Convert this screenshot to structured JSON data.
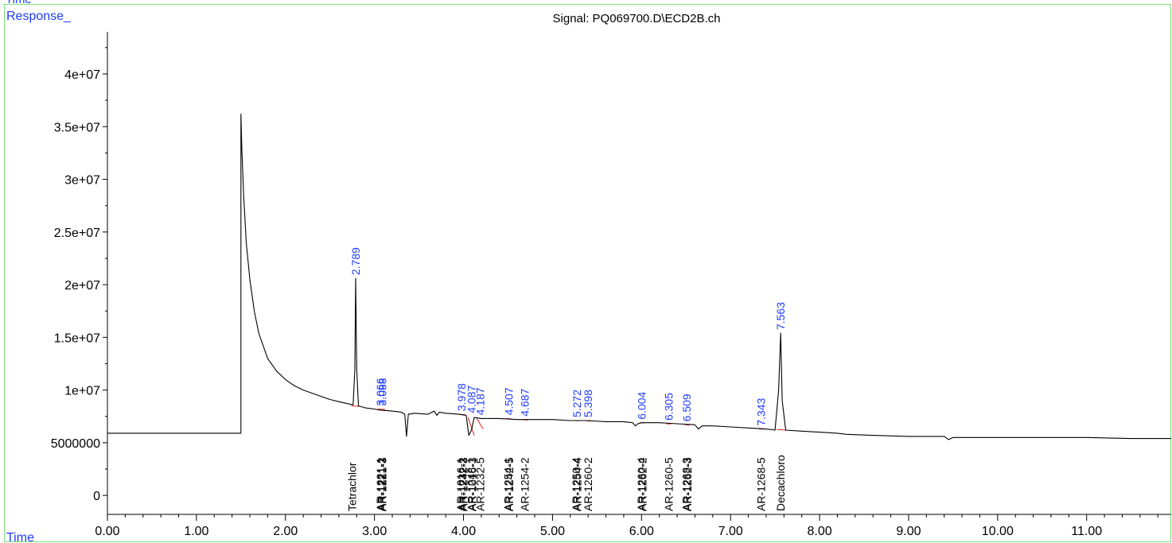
{
  "top_left_label": "Time",
  "chart_data": {
    "type": "line",
    "title": "Signal: PQ069700.D\\ECD2B.ch",
    "ylabel": "Response_",
    "xlabel": "Time",
    "xlim": [
      0,
      11.95
    ],
    "ylim": [
      -1800000,
      44000000
    ],
    "x_ticks": [
      0,
      1,
      2,
      3,
      4,
      5,
      6,
      7,
      8,
      9,
      10,
      11
    ],
    "x_tick_labels": [
      "0.00",
      "1.00",
      "2.00",
      "3.00",
      "4.00",
      "5.00",
      "6.00",
      "7.00",
      "8.00",
      "9.00",
      "10.00",
      "11.00"
    ],
    "y_ticks": [
      0,
      5000000,
      10000000,
      15000000,
      20000000,
      25000000,
      30000000,
      35000000,
      40000000
    ],
    "y_tick_labels": [
      "0",
      "5000000",
      "1e+07",
      "1.5e+07",
      "2e+07",
      "2.5e+07",
      "3e+07",
      "3.5e+07",
      "4e+07"
    ],
    "colors": {
      "trace": "#000000",
      "baseline": "#e0201c",
      "rt_label": "#1f3cff",
      "axis": "#000000",
      "frame": "#7be07b"
    },
    "series": [
      {
        "x": [
          0,
          1.5,
          1.5,
          1.51,
          1.53,
          1.56,
          1.6,
          1.65,
          1.7,
          1.8,
          1.9,
          2.0,
          2.1,
          2.2,
          2.3,
          2.4,
          2.5,
          2.6,
          2.7,
          2.76,
          2.78,
          2.789,
          2.8,
          2.82,
          2.9,
          3.0,
          3.06,
          3.2,
          3.3,
          3.34,
          3.36,
          3.38,
          3.45,
          3.6,
          3.67,
          3.7,
          3.73,
          3.8,
          3.95,
          4.03,
          4.06,
          4.09,
          4.12,
          4.2,
          4.4,
          4.6,
          4.8,
          5.0,
          5.2,
          5.4,
          5.6,
          5.8,
          5.9,
          5.93,
          5.96,
          6.0,
          6.2,
          6.4,
          6.6,
          6.64,
          6.68,
          6.8,
          7.0,
          7.2,
          7.4,
          7.5,
          7.54,
          7.563,
          7.58,
          7.62,
          7.8,
          8.0,
          8.2,
          8.3,
          8.6,
          9.0,
          9.4,
          9.45,
          9.5,
          10.0,
          10.5,
          11.0,
          11.5,
          11.95
        ],
        "y": [
          5900000,
          5900000,
          36200000,
          33000000,
          28500000,
          24000000,
          20500000,
          17500000,
          15400000,
          13000000,
          11800000,
          11000000,
          10400000,
          10000000,
          9700000,
          9400000,
          9100000,
          8900000,
          8700000,
          8600000,
          12000000,
          20600000,
          12000000,
          8500000,
          8300000,
          8200000,
          8100000,
          8000000,
          7900000,
          7700000,
          5600000,
          7700000,
          7800000,
          7700000,
          8000000,
          7600000,
          7900000,
          7800000,
          7700000,
          7600000,
          5700000,
          6200000,
          7400000,
          7300000,
          7300000,
          7200000,
          7200000,
          7200000,
          7100000,
          7100000,
          7000000,
          7000000,
          6900000,
          6600000,
          6800000,
          6900000,
          6900000,
          6800000,
          6700000,
          6300000,
          6600000,
          6600000,
          6500000,
          6400000,
          6300000,
          6200000,
          10000000,
          15400000,
          9000000,
          6200000,
          6100000,
          6000000,
          5900000,
          5800000,
          5700000,
          5600000,
          5600000,
          5300000,
          5500000,
          5500000,
          5500000,
          5500000,
          5400000,
          5400000
        ]
      }
    ],
    "peak_labels": [
      {
        "rt": "2.789",
        "x": 2.789,
        "y": 20600000
      },
      {
        "rt": "3.066",
        "x": 3.066,
        "y": 8200000
      },
      {
        "rt": "3.088",
        "x": 3.088,
        "y": 8200000
      },
      {
        "rt": "3.978",
        "x": 3.978,
        "y": 7700000
      },
      {
        "rt": "4.087",
        "x": 4.087,
        "y": 7500000
      },
      {
        "rt": "4.187",
        "x": 4.187,
        "y": 7300000
      },
      {
        "rt": "4.507",
        "x": 4.507,
        "y": 7300000
      },
      {
        "rt": "4.687",
        "x": 4.687,
        "y": 7200000
      },
      {
        "rt": "5.272",
        "x": 5.272,
        "y": 7100000
      },
      {
        "rt": "5.398",
        "x": 5.398,
        "y": 7100000
      },
      {
        "rt": "6.004",
        "x": 6.004,
        "y": 6900000
      },
      {
        "rt": "6.305",
        "x": 6.305,
        "y": 6800000
      },
      {
        "rt": "6.509",
        "x": 6.509,
        "y": 6700000
      },
      {
        "rt": "7.343",
        "x": 7.343,
        "y": 6300000
      },
      {
        "rt": "7.563",
        "x": 7.563,
        "y": 15400000
      }
    ],
    "compound_labels": [
      {
        "name": "Tetrachlor",
        "x": 2.75
      },
      {
        "name": "AR-1221-1",
        "x": 3.066
      },
      {
        "name": "AR-1221-2",
        "x": 3.077
      },
      {
        "name": "AR-1221-3",
        "x": 3.088
      },
      {
        "name": "AR-1016-1",
        "x": 3.97
      },
      {
        "name": "AR-1232-2",
        "x": 3.985
      },
      {
        "name": "AR-1242-3",
        "x": 4.0
      },
      {
        "name": "AR-1248-1",
        "x": 4.087
      },
      {
        "name": "AR-1016-3",
        "x": 4.1
      },
      {
        "name": "AR-1232-5",
        "x": 4.187
      },
      {
        "name": "AR-1254-1",
        "x": 4.5
      },
      {
        "name": "AR-1242-5",
        "x": 4.512
      },
      {
        "name": "AR-1254-2",
        "x": 4.687
      },
      {
        "name": "AR-1250-4",
        "x": 5.266
      },
      {
        "name": "AR-1254-4",
        "x": 5.278
      },
      {
        "name": "AR-1260-2",
        "x": 5.398
      },
      {
        "name": "AR-1260-4",
        "x": 5.998
      },
      {
        "name": "AR-1262-2",
        "x": 6.01
      },
      {
        "name": "AR-1260-5",
        "x": 6.305
      },
      {
        "name": "AR-1268-3",
        "x": 6.503
      },
      {
        "name": "AR-1262-3",
        "x": 6.515
      },
      {
        "name": "AR-1268-5",
        "x": 7.343
      },
      {
        "name": "Decachloro",
        "x": 7.563
      }
    ],
    "baselines": [
      {
        "x": [
          2.74,
          2.83
        ],
        "y": [
          8500000,
          8450000
        ]
      },
      {
        "x": [
          3.04,
          3.12
        ],
        "y": [
          8200000,
          8150000
        ]
      },
      {
        "x": [
          3.95,
          4.02
        ],
        "y": [
          7700000,
          7650000
        ]
      },
      {
        "x": [
          4.05,
          4.12
        ],
        "y": [
          7400000,
          5700000
        ]
      },
      {
        "x": [
          4.15,
          4.22
        ],
        "y": [
          7300000,
          6300000
        ]
      },
      {
        "x": [
          4.48,
          4.54
        ],
        "y": [
          7300000,
          7250000
        ]
      },
      {
        "x": [
          4.66,
          4.72
        ],
        "y": [
          7200000,
          7150000
        ]
      },
      {
        "x": [
          5.25,
          5.3
        ],
        "y": [
          7100000,
          7080000
        ]
      },
      {
        "x": [
          5.37,
          5.43
        ],
        "y": [
          7100000,
          7050000
        ]
      },
      {
        "x": [
          5.98,
          6.03
        ],
        "y": [
          6900000,
          6870000
        ]
      },
      {
        "x": [
          6.28,
          6.33
        ],
        "y": [
          6800000,
          6780000
        ]
      },
      {
        "x": [
          6.49,
          6.54
        ],
        "y": [
          6700000,
          6680000
        ]
      },
      {
        "x": [
          7.32,
          7.37
        ],
        "y": [
          6300000,
          6280000
        ]
      },
      {
        "x": [
          7.52,
          7.62
        ],
        "y": [
          6250000,
          6200000
        ]
      }
    ]
  }
}
